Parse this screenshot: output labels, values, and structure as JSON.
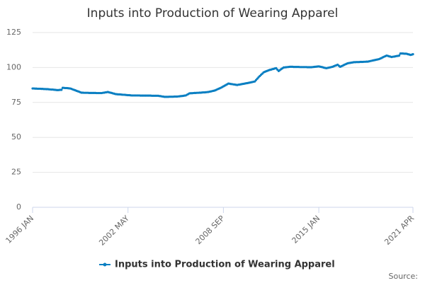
{
  "chart_data": {
    "type": "line",
    "title": "Inputs into Production of Wearing Apparel",
    "source": "Source:",
    "categories": [
      "1996 JAN",
      null,
      null,
      null,
      null,
      null,
      null,
      null,
      null,
      null,
      null,
      null,
      null,
      null,
      null,
      null,
      null,
      null,
      null,
      null,
      null,
      null,
      null,
      null,
      null,
      null,
      null,
      null,
      null,
      null,
      null,
      null,
      null,
      null,
      null,
      null,
      null,
      null,
      null,
      null,
      null,
      null,
      null,
      null,
      null,
      null,
      null,
      null,
      null,
      null,
      null,
      null,
      null,
      null,
      null,
      null,
      null,
      null,
      null,
      null,
      null,
      null,
      null,
      null,
      null,
      null,
      null,
      null,
      null,
      null,
      null,
      null,
      null,
      null,
      null,
      null,
      "2002 MAY",
      null,
      null,
      null,
      null,
      null,
      null,
      null,
      null,
      null,
      null,
      null,
      null,
      null,
      null,
      null,
      null,
      null,
      null,
      null,
      null,
      null,
      null,
      null,
      null,
      null,
      null,
      null,
      null,
      null,
      null,
      null,
      null,
      null,
      null,
      null,
      null,
      null,
      null,
      null,
      null,
      null,
      null,
      null,
      null,
      null,
      null,
      null,
      null,
      null,
      null,
      null,
      null,
      null,
      null,
      null,
      null,
      null,
      null,
      null,
      null,
      null,
      null,
      null,
      null,
      null,
      null,
      null,
      null,
      null,
      null,
      null,
      null,
      null,
      null,
      null,
      "2008 SEP",
      null,
      null,
      null,
      null,
      null,
      null,
      null,
      null,
      null,
      null,
      null,
      null,
      null,
      null,
      null,
      null,
      null,
      null,
      null,
      null,
      null,
      null,
      null,
      null,
      null,
      null,
      null,
      null,
      null,
      null,
      null,
      null,
      null,
      null,
      null,
      null,
      null,
      null,
      null,
      null,
      null,
      null,
      null,
      null,
      null,
      null,
      null,
      null,
      null,
      null,
      null,
      null,
      null,
      null,
      null,
      null,
      null,
      null,
      null,
      null,
      null,
      null,
      null,
      null,
      null,
      null,
      null,
      null,
      null,
      null,
      null,
      null,
      null,
      null,
      null,
      "2015 JAN",
      null,
      null,
      null,
      null,
      null,
      null,
      null,
      null,
      null,
      null,
      null,
      null,
      null,
      null,
      null,
      null,
      null,
      null,
      null,
      null,
      null,
      null,
      null,
      null,
      null,
      null,
      null,
      null,
      null,
      null,
      null,
      null,
      null,
      null,
      null,
      null,
      null,
      null,
      null,
      null,
      null,
      null,
      null,
      null,
      null,
      null,
      null,
      null,
      null,
      null,
      null,
      null,
      null,
      null,
      null,
      null,
      null,
      null,
      null,
      null,
      null,
      null,
      null,
      null,
      null,
      null,
      null,
      null,
      null,
      null,
      null,
      null,
      null,
      null,
      "2021 APR"
    ],
    "series": [
      {
        "name": "Inputs into Production of Wearing Apparel",
        "color": "#0a7fc2",
        "values": [
          85,
          85,
          84.9,
          84.9,
          84.8,
          84.8,
          84.8,
          84.7,
          84.7,
          84.6,
          84.6,
          84.5,
          84.5,
          84.4,
          84.3,
          84.2,
          84.2,
          84.1,
          84,
          83.9,
          83.8,
          83.9,
          84,
          84,
          85.5,
          85.4,
          85.3,
          85.3,
          85.2,
          85.1,
          85,
          84.7,
          84.3,
          84,
          83.7,
          83.3,
          83,
          82.7,
          82.3,
          82,
          82,
          81.9,
          81.9,
          81.9,
          81.9,
          81.8,
          81.8,
          81.8,
          81.8,
          81.8,
          81.8,
          81.7,
          81.7,
          81.7,
          81.7,
          81.7,
          81.9,
          82,
          82.2,
          82.3,
          82.5,
          82.2,
          82,
          81.8,
          81.5,
          81.3,
          81,
          80.9,
          80.8,
          80.8,
          80.7,
          80.6,
          80.5,
          80.5,
          80.4,
          80.3,
          80.2,
          80.2,
          80.1,
          80,
          80,
          80,
          80,
          80,
          80,
          80,
          79.9,
          79.9,
          79.9,
          79.9,
          79.9,
          79.9,
          79.9,
          79.9,
          79.9,
          79.8,
          79.8,
          79.8,
          79.8,
          79.8,
          79.8,
          79.6,
          79.5,
          79.3,
          79.2,
          79,
          79,
          79,
          79,
          79.1,
          79.1,
          79.1,
          79.1,
          79.2,
          79.2,
          79.2,
          79.3,
          79.4,
          79.5,
          79.6,
          79.7,
          79.9,
          80,
          80.5,
          81,
          81.5,
          81.6,
          81.6,
          81.7,
          81.8,
          81.8,
          81.9,
          81.9,
          82,
          82,
          82.1,
          82.2,
          82.2,
          82.3,
          82.4,
          82.5,
          82.7,
          82.9,
          83.1,
          83.3,
          83.5,
          83.9,
          84.3,
          84.7,
          85.1,
          85.5,
          86,
          86.5,
          87,
          87.5,
          88,
          88.5,
          88.4,
          88.2,
          88.1,
          87.9,
          87.8,
          87.6,
          87.5,
          87.7,
          87.8,
          88,
          88.2,
          88.3,
          88.5,
          88.7,
          88.8,
          89,
          89.2,
          89.4,
          89.6,
          89.8,
          90,
          91,
          92,
          93,
          93.9,
          94.8,
          95.6,
          96.5,
          96.9,
          97.3,
          97.6,
          98,
          98.3,
          98.5,
          98.8,
          99,
          99.3,
          99.5,
          98.5,
          97.5,
          98.1,
          98.8,
          99.4,
          100,
          100.1,
          100.2,
          100.3,
          100.4,
          100.5,
          100.5,
          100.5,
          100.4,
          100.4,
          100.4,
          100.4,
          100.4,
          100.3,
          100.3,
          100.3,
          100.3,
          100.3,
          100.3,
          100.2,
          100.2,
          100.2,
          100.2,
          100.3,
          100.4,
          100.5,
          100.6,
          100.7,
          100.8,
          100.6,
          100.4,
          100.2,
          99.9,
          99.7,
          99.5,
          99.7,
          99.9,
          100.1,
          100.3,
          100.5,
          100.9,
          101.3,
          101.6,
          102,
          101.2,
          100.5,
          100.9,
          101.3,
          101.8,
          102.2,
          102.6,
          103,
          103.2,
          103.3,
          103.5,
          103.6,
          103.8,
          103.8,
          103.9,
          103.9,
          103.9,
          104,
          104,
          104,
          104.1,
          104.1,
          104.2,
          104.2,
          104.4,
          104.6,
          104.8,
          105,
          105.2,
          105.4,
          105.6,
          105.8,
          106,
          106.4,
          106.8,
          107.3,
          107.7,
          108.1,
          108.5,
          108.3,
          108,
          107.8,
          107.5,
          107.7,
          107.8,
          108,
          108.2,
          108.3,
          108.5,
          110,
          110,
          110,
          109.9,
          109.9,
          109.8,
          109.5,
          109.3,
          109,
          109.2,
          109.5
        ]
      }
    ],
    "ylim": [
      0,
      125
    ],
    "yticks": [
      0,
      25,
      50,
      75,
      100,
      125
    ],
    "grid": true,
    "legend": "bottom"
  }
}
